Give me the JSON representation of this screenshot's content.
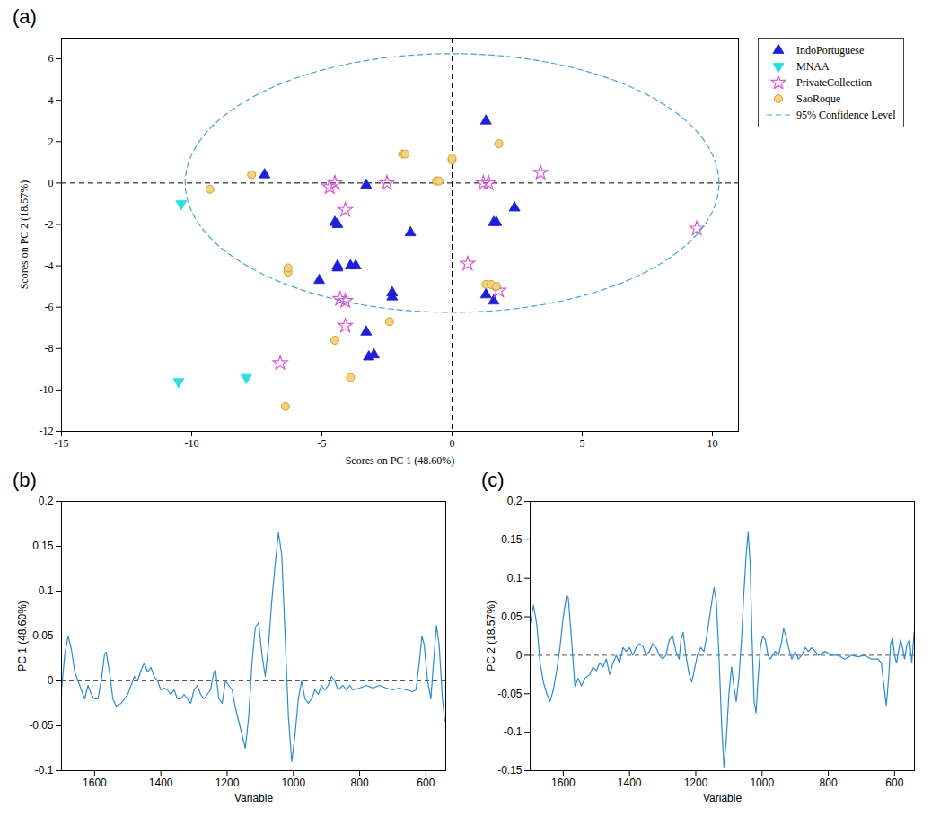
{
  "chart_data": [
    {
      "type": "scatter",
      "label": "(a)",
      "xlabel": "Scores on PC 1 (48.60%)",
      "ylabel": "Scores on PC 2 (18.57%)",
      "xlim": [
        -15,
        11
      ],
      "ylim": [
        -12,
        7
      ],
      "xticks": [
        -15,
        -10,
        -5,
        0,
        5,
        10
      ],
      "yticks": [
        -12,
        -10,
        -8,
        -6,
        -4,
        -2,
        0,
        2,
        4,
        6
      ],
      "reference_lines": {
        "x": 0,
        "y": 0
      },
      "legend": "right",
      "series": [
        {
          "name": "IndoPortuguese",
          "color": "#1f1fd6",
          "marker": "triangle",
          "x": [
            -7.2,
            -3.3,
            -1.6,
            1.3,
            2.4,
            1.6,
            1.7,
            -4.5,
            -4.4,
            -4.4,
            -4.4,
            -3.9,
            -3.7,
            -5.1,
            -2.3,
            -2.3,
            1.3,
            1.6,
            -3.3,
            -3.2,
            -3.0
          ],
          "values": [
            0.4,
            -0.1,
            -2.4,
            3.0,
            -1.2,
            -1.9,
            -1.9,
            -1.9,
            -2.0,
            -4.1,
            -4.0,
            -4.0,
            -4.0,
            -4.7,
            -5.3,
            -5.5,
            -5.4,
            -5.7,
            -7.2,
            -8.4,
            -8.3
          ]
        },
        {
          "name": "MNAA",
          "color": "#2fdede",
          "marker": "triangle-down",
          "x": [
            -10.4,
            -10.5,
            -7.9
          ],
          "values": [
            -1.0,
            -9.6,
            -9.4
          ]
        },
        {
          "name": "PrivateCollection",
          "color": "#d955d9",
          "marker": "star",
          "x": [
            -4.7,
            -4.5,
            -2.5,
            1.2,
            1.4,
            3.4,
            9.4,
            -4.1,
            0.6,
            1.8,
            -4.3,
            -4.1,
            -4.1,
            -6.6
          ],
          "values": [
            -0.2,
            0.0,
            0.0,
            0.0,
            0.0,
            0.5,
            -2.2,
            -1.3,
            -3.9,
            -5.2,
            -5.6,
            -5.7,
            -6.9,
            -8.7
          ]
        },
        {
          "name": "SaoRoque",
          "color": "#f3d37c",
          "marker": "circle",
          "x": [
            -9.3,
            -7.7,
            -1.9,
            -1.8,
            0,
            0,
            -0.6,
            -0.5,
            1.8,
            -6.3,
            -6.3,
            1.3,
            1.5,
            1.7,
            -2.4,
            -4.5,
            -3.9,
            -6.4
          ],
          "values": [
            -0.3,
            0.4,
            1.4,
            1.4,
            1.1,
            1.2,
            0.1,
            0.1,
            1.9,
            -4.3,
            -4.1,
            -4.9,
            -4.9,
            -5.0,
            -6.7,
            -7.6,
            -9.4,
            -10.8
          ]
        },
        {
          "name": "95% Confidence Level",
          "type": "ellipse",
          "color": "#4aa0d8",
          "line_style": "dashed",
          "center": [
            0,
            0
          ],
          "radii": [
            10.25,
            6.25
          ]
        }
      ]
    },
    {
      "type": "line",
      "label": "(b)",
      "xlabel": "Variable",
      "ylabel": "PC 1 (48.60%)",
      "xlim": [
        1700,
        540
      ],
      "ylim": [
        -0.1,
        0.2
      ],
      "xticks": [
        1600,
        1400,
        1200,
        1000,
        800,
        600
      ],
      "yticks": [
        -0.1,
        -0.05,
        0,
        0.05,
        0.1,
        0.15,
        0.2
      ],
      "reference_lines": {
        "y": 0
      },
      "x": [
        1700,
        1690,
        1680,
        1670,
        1660,
        1650,
        1640,
        1630,
        1620,
        1610,
        1600,
        1590,
        1580,
        1570,
        1565,
        1555,
        1545,
        1535,
        1520,
        1500,
        1490,
        1480,
        1470,
        1460,
        1450,
        1440,
        1430,
        1420,
        1410,
        1400,
        1390,
        1380,
        1370,
        1360,
        1350,
        1340,
        1330,
        1320,
        1310,
        1300,
        1290,
        1280,
        1270,
        1260,
        1250,
        1240,
        1235,
        1225,
        1215,
        1205,
        1195,
        1185,
        1175,
        1165,
        1155,
        1145,
        1135,
        1125,
        1115,
        1105,
        1095,
        1085,
        1075,
        1065,
        1055,
        1045,
        1035,
        1025,
        1015,
        1005,
        995,
        985,
        975,
        965,
        955,
        945,
        935,
        925,
        915,
        905,
        895,
        885,
        875,
        865,
        850,
        840,
        830,
        820,
        800,
        780,
        760,
        740,
        720,
        700,
        680,
        660,
        640,
        630,
        620,
        612,
        605,
        595,
        585,
        575,
        568,
        560,
        550,
        543
      ],
      "series": [
        {
          "color": "#2a8ad4",
          "values": [
            -0.01,
            0.03,
            0.05,
            0.035,
            0.01,
            0.0,
            -0.01,
            -0.02,
            -0.005,
            -0.015,
            -0.02,
            -0.02,
            0.0,
            0.03,
            0.032,
            0.01,
            -0.02,
            -0.028,
            -0.025,
            -0.015,
            -0.005,
            0.005,
            0.0,
            0.012,
            0.02,
            0.01,
            0.015,
            0.005,
            0.0,
            -0.01,
            -0.008,
            -0.01,
            -0.015,
            -0.01,
            -0.02,
            -0.02,
            -0.015,
            -0.02,
            -0.025,
            -0.01,
            -0.005,
            -0.015,
            -0.02,
            -0.015,
            -0.01,
            0.01,
            0.012,
            -0.02,
            -0.025,
            0.0,
            -0.005,
            -0.01,
            -0.03,
            -0.045,
            -0.06,
            -0.075,
            -0.04,
            0.02,
            0.06,
            0.065,
            0.03,
            0.005,
            0.04,
            0.09,
            0.13,
            0.165,
            0.14,
            0.05,
            -0.04,
            -0.09,
            -0.06,
            -0.02,
            0.0,
            -0.02,
            -0.025,
            -0.02,
            -0.01,
            -0.015,
            -0.005,
            -0.01,
            -0.005,
            0.005,
            0.0,
            -0.01,
            -0.005,
            -0.01,
            -0.005,
            -0.01,
            -0.008,
            -0.005,
            -0.008,
            -0.005,
            -0.008,
            -0.01,
            -0.008,
            -0.01,
            -0.012,
            -0.01,
            0.02,
            0.05,
            0.04,
            0.0,
            -0.02,
            0.03,
            0.062,
            0.04,
            -0.02,
            -0.045
          ]
        }
      ]
    },
    {
      "type": "line",
      "label": "(c)",
      "xlabel": "Variable",
      "ylabel": "PC 2 (18.57%)",
      "xlim": [
        1700,
        540
      ],
      "ylim": [
        -0.15,
        0.2
      ],
      "xticks": [
        1600,
        1400,
        1200,
        1000,
        800,
        600
      ],
      "yticks": [
        -0.15,
        -0.1,
        -0.05,
        0,
        0.05,
        0.1,
        0.15,
        0.2
      ],
      "reference_lines": {
        "y": 0
      },
      "x": [
        1700,
        1690,
        1680,
        1670,
        1660,
        1650,
        1640,
        1630,
        1620,
        1610,
        1600,
        1590,
        1585,
        1575,
        1565,
        1555,
        1545,
        1535,
        1520,
        1510,
        1500,
        1490,
        1480,
        1470,
        1460,
        1450,
        1440,
        1430,
        1420,
        1410,
        1400,
        1390,
        1380,
        1370,
        1360,
        1350,
        1340,
        1330,
        1320,
        1310,
        1300,
        1290,
        1280,
        1270,
        1260,
        1250,
        1245,
        1238,
        1230,
        1220,
        1212,
        1205,
        1195,
        1185,
        1175,
        1165,
        1155,
        1145,
        1138,
        1130,
        1122,
        1115,
        1108,
        1100,
        1092,
        1085,
        1078,
        1070,
        1062,
        1055,
        1048,
        1042,
        1036,
        1030,
        1024,
        1018,
        1012,
        1005,
        998,
        990,
        982,
        975,
        968,
        960,
        950,
        940,
        935,
        928,
        920,
        910,
        900,
        890,
        880,
        870,
        860,
        850,
        840,
        830,
        810,
        790,
        770,
        750,
        730,
        710,
        690,
        670,
        650,
        640,
        632,
        625,
        618,
        612,
        606,
        600,
        594,
        588,
        582,
        576,
        570,
        562,
        555,
        548,
        541
      ],
      "series": [
        {
          "color": "#2a8ad4",
          "values": [
            0.04,
            0.065,
            0.04,
            -0.01,
            -0.035,
            -0.05,
            -0.06,
            -0.045,
            -0.02,
            0.01,
            0.05,
            0.078,
            0.075,
            0.02,
            -0.04,
            -0.03,
            -0.04,
            -0.03,
            -0.025,
            -0.015,
            -0.02,
            -0.01,
            -0.015,
            -0.005,
            -0.025,
            -0.01,
            0.0,
            -0.01,
            0.01,
            0.005,
            0.01,
            0.0,
            0.01,
            0.015,
            0.012,
            0.0,
            0.005,
            0.015,
            0.01,
            0.0,
            -0.005,
            0.0,
            0.02,
            0.025,
            0.005,
            -0.005,
            0.02,
            0.03,
            0.0,
            -0.025,
            -0.035,
            -0.02,
            0.0,
            0.01,
            0.005,
            0.03,
            0.06,
            0.088,
            0.07,
            0.0,
            -0.09,
            -0.145,
            -0.11,
            -0.05,
            -0.015,
            -0.04,
            -0.06,
            -0.03,
            0.02,
            0.08,
            0.13,
            0.16,
            0.12,
            0.02,
            -0.06,
            -0.075,
            -0.03,
            0.01,
            0.025,
            0.02,
            0.0,
            -0.005,
            0.0,
            0.005,
            0.0,
            0.02,
            0.035,
            0.025,
            0.01,
            -0.005,
            0.005,
            -0.005,
            0.0,
            0.01,
            0.005,
            0.01,
            0.005,
            0.0,
            0.005,
            0.0,
            0.0,
            -0.005,
            0.0,
            -0.002,
            0.0,
            -0.005,
            -0.005,
            -0.01,
            -0.04,
            -0.065,
            -0.03,
            0.015,
            0.022,
            0.0,
            -0.01,
            0.005,
            0.02,
            0.01,
            -0.005,
            0.015,
            0.02,
            -0.01,
            0.03
          ]
        }
      ]
    }
  ]
}
